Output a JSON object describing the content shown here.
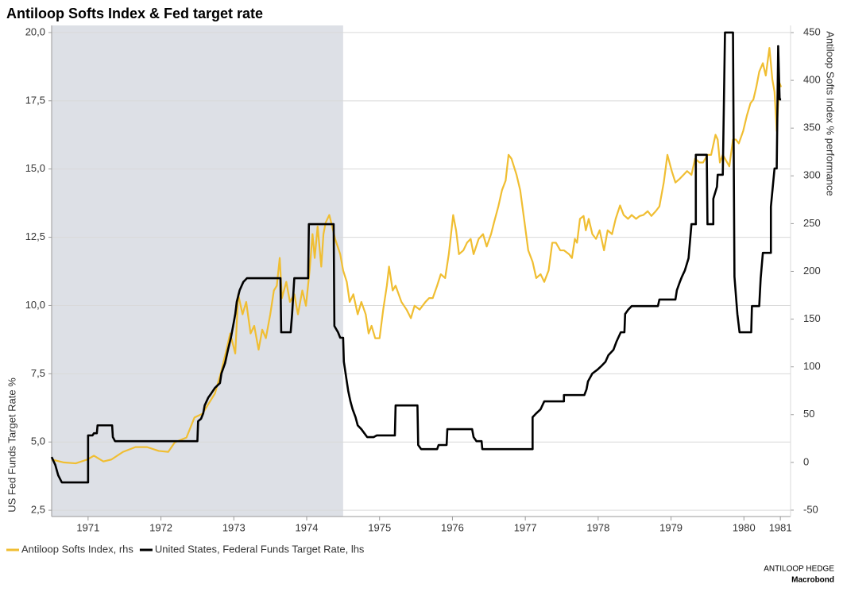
{
  "chart_data": {
    "type": "line",
    "title": "Antiloop Softs Index & Fed target rate",
    "y_label": "US Fed Funds Target Rate %",
    "y2_label": "Antiloop Softs Index % performance",
    "source": "ANTILOOP HEDGE",
    "credit": "Macrobond",
    "xlim": [
      1971,
      1981.14
    ],
    "xticks": [
      {
        "value": 1971.5,
        "label": "1971"
      },
      {
        "value": 1972.5,
        "label": "1972"
      },
      {
        "value": 1973.5,
        "label": "1973"
      },
      {
        "value": 1974.5,
        "label": "1974"
      },
      {
        "value": 1975.5,
        "label": "1975"
      },
      {
        "value": 1976.5,
        "label": "1976"
      },
      {
        "value": 1977.5,
        "label": "1977"
      },
      {
        "value": 1978.5,
        "label": "1978"
      },
      {
        "value": 1979.5,
        "label": "1979"
      },
      {
        "value": 1980.5,
        "label": "1980"
      },
      1981
    ],
    "ylim": [
      2.27,
      20.26
    ],
    "yticks": [
      {
        "value": 2.5,
        "label": "2,5"
      },
      {
        "value": 5,
        "label": "5,0"
      },
      {
        "value": 7.5,
        "label": "7,5"
      },
      {
        "value": 10,
        "label": "10,0"
      },
      {
        "value": 12.5,
        "label": "12,5"
      },
      {
        "value": 15,
        "label": "15,0"
      },
      {
        "value": 17.5,
        "label": "17,5"
      },
      {
        "value": 20,
        "label": "20,0"
      }
    ],
    "y2lim": [
      -56.7,
      457.5
    ],
    "y2ticks": [
      -50,
      0,
      50,
      100,
      150,
      200,
      250,
      300,
      350,
      400,
      450
    ],
    "grid": true,
    "shaded_x": [
      1971,
      1975
    ],
    "shade_color": "#dde0e6",
    "series": [
      {
        "name": "Antiloop Softs Index, rhs",
        "color": "#f0be32",
        "axis": "y2",
        "x": [
          1971.0,
          1971.16,
          1971.33,
          1971.49,
          1971.58,
          1971.71,
          1971.82,
          1971.98,
          1972.15,
          1972.31,
          1972.47,
          1972.6,
          1972.69,
          1972.85,
          1972.96,
          1973.07,
          1973.15,
          1973.24,
          1973.32,
          1973.4,
          1973.45,
          1973.52,
          1973.56,
          1973.62,
          1973.67,
          1973.73,
          1973.78,
          1973.84,
          1973.89,
          1973.94,
          1974.0,
          1974.05,
          1974.09,
          1974.13,
          1974.16,
          1974.22,
          1974.27,
          1974.33,
          1974.38,
          1974.44,
          1974.49,
          1974.54,
          1974.58,
          1974.61,
          1974.65,
          1974.7,
          1974.73,
          1974.76,
          1974.81,
          1974.85,
          1974.89,
          1974.96,
          1975.0,
          1975.05,
          1975.09,
          1975.14,
          1975.2,
          1975.25,
          1975.31,
          1975.35,
          1975.39,
          1975.44,
          1975.5,
          1975.55,
          1975.6,
          1975.63,
          1975.68,
          1975.72,
          1975.8,
          1975.87,
          1975.93,
          1975.98,
          1976.05,
          1976.13,
          1976.18,
          1976.23,
          1976.29,
          1976.34,
          1976.4,
          1976.45,
          1976.51,
          1976.55,
          1976.59,
          1976.65,
          1976.7,
          1976.75,
          1976.79,
          1976.86,
          1976.92,
          1976.97,
          1977.03,
          1977.07,
          1977.13,
          1977.18,
          1977.23,
          1977.27,
          1977.31,
          1977.38,
          1977.43,
          1977.49,
          1977.54,
          1977.6,
          1977.65,
          1977.71,
          1977.76,
          1977.82,
          1977.87,
          1977.92,
          1977.98,
          1978.03,
          1978.1,
          1978.14,
          1978.18,
          1978.21,
          1978.25,
          1978.3,
          1978.33,
          1978.37,
          1978.42,
          1978.47,
          1978.52,
          1978.58,
          1978.63,
          1978.69,
          1978.74,
          1978.8,
          1978.85,
          1978.91,
          1978.96,
          1979.02,
          1979.07,
          1979.12,
          1979.18,
          1979.23,
          1979.29,
          1979.34,
          1979.4,
          1979.45,
          1979.51,
          1979.56,
          1979.62,
          1979.67,
          1979.72,
          1979.78,
          1979.83,
          1979.89,
          1979.94,
          1980.0,
          1980.05,
          1980.11,
          1980.14,
          1980.17,
          1980.21,
          1980.27,
          1980.3,
          1980.35,
          1980.39,
          1980.43,
          1980.49,
          1980.54,
          1980.59,
          1980.63,
          1980.67,
          1980.71,
          1980.76,
          1980.8,
          1980.85,
          1980.89,
          1980.92,
          1980.95,
          1980.97,
          1980.99,
          1981.01
        ],
        "values": [
          3,
          0,
          -1,
          3,
          7,
          1,
          3,
          11,
          16,
          16,
          12,
          11,
          21,
          26,
          47,
          51,
          61,
          72,
          93,
          118,
          135,
          114,
          176,
          155,
          168,
          135,
          143,
          118,
          139,
          130,
          155,
          180,
          185,
          214,
          172,
          189,
          168,
          176,
          155,
          180,
          164,
          201,
          239,
          214,
          247,
          205,
          239,
          251,
          259,
          247,
          234,
          218,
          201,
          189,
          168,
          176,
          155,
          168,
          155,
          135,
          143,
          130,
          130,
          160,
          185,
          205,
          180,
          185,
          168,
          160,
          151,
          164,
          160,
          168,
          172,
          172,
          185,
          197,
          193,
          218,
          259,
          243,
          218,
          222,
          230,
          234,
          218,
          234,
          239,
          226,
          239,
          251,
          268,
          285,
          295,
          322,
          318,
          301,
          285,
          251,
          222,
          210,
          193,
          197,
          189,
          201,
          230,
          230,
          222,
          222,
          218,
          214,
          234,
          230,
          255,
          258,
          243,
          255,
          239,
          234,
          243,
          222,
          243,
          239,
          255,
          269,
          259,
          255,
          259,
          255,
          258,
          259,
          263,
          258,
          263,
          268,
          293,
          322,
          305,
          293,
          297,
          301,
          305,
          301,
          318,
          314,
          314,
          322,
          322,
          343,
          338,
          314,
          322,
          314,
          310,
          338,
          338,
          334,
          347,
          363,
          376,
          380,
          393,
          409,
          418,
          405,
          434,
          401,
          388,
          347,
          376,
          397,
          393
        ]
      },
      {
        "name": "United States, Federal Funds Target Rate, lhs",
        "color": "#000000",
        "axis": "y",
        "x": [
          1971.0,
          1971.05,
          1971.09,
          1971.14,
          1971.5,
          1971.5,
          1971.56,
          1971.58,
          1971.62,
          1971.63,
          1971.83,
          1971.84,
          1971.87,
          1973.0,
          1973.01,
          1973.05,
          1973.08,
          1973.1,
          1973.15,
          1973.19,
          1973.24,
          1973.31,
          1973.33,
          1973.38,
          1973.42,
          1973.46,
          1973.49,
          1973.52,
          1973.54,
          1973.58,
          1973.63,
          1973.68,
          1974.14,
          1974.15,
          1974.28,
          1974.3,
          1974.33,
          1974.52,
          1974.53,
          1974.87,
          1974.88,
          1974.93,
          1974.96,
          1975.0,
          1975.01,
          1975.05,
          1975.07,
          1975.1,
          1975.13,
          1975.17,
          1975.2,
          1975.25,
          1975.33,
          1975.42,
          1975.46,
          1975.71,
          1975.72,
          1976.02,
          1976.03,
          1976.07,
          1976.29,
          1976.31,
          1976.42,
          1976.43,
          1976.77,
          1976.79,
          1976.83,
          1976.9,
          1976.91,
          1977.6,
          1977.6,
          1977.65,
          1977.71,
          1977.76,
          1978.03,
          1978.03,
          1978.31,
          1978.34,
          1978.36,
          1978.42,
          1978.49,
          1978.55,
          1978.6,
          1978.64,
          1978.71,
          1978.75,
          1978.81,
          1978.86,
          1978.87,
          1978.91,
          1978.96,
          1979.32,
          1979.34,
          1979.56,
          1979.58,
          1979.62,
          1979.65,
          1979.69,
          1979.74,
          1979.78,
          1979.84,
          1979.84,
          1979.99,
          1980.0,
          1980.08,
          1980.08,
          1980.13,
          1980.14,
          1980.21,
          1980.24,
          1980.35,
          1980.37,
          1980.41,
          1980.44,
          1980.6,
          1980.61,
          1980.71,
          1980.73,
          1980.76,
          1980.87,
          1980.87,
          1980.92,
          1980.95,
          1980.97,
          1980.99,
          1981.01
        ],
        "values": [
          4.45,
          4.16,
          3.78,
          3.52,
          3.52,
          5.24,
          5.24,
          5.32,
          5.32,
          5.61,
          5.61,
          5.18,
          5.03,
          5.03,
          5.76,
          5.85,
          6.05,
          6.34,
          6.63,
          6.78,
          6.98,
          7.16,
          7.51,
          7.89,
          8.38,
          8.82,
          9.25,
          9.69,
          10.13,
          10.56,
          10.86,
          11.0,
          11.0,
          9.02,
          9.02,
          9.69,
          11.0,
          11.0,
          12.98,
          12.98,
          9.25,
          9.02,
          8.82,
          8.82,
          7.94,
          7.22,
          6.87,
          6.49,
          6.2,
          5.91,
          5.61,
          5.47,
          5.18,
          5.18,
          5.24,
          5.24,
          6.34,
          6.34,
          4.89,
          4.74,
          4.74,
          4.89,
          4.89,
          5.47,
          5.47,
          5.18,
          5.03,
          5.03,
          4.74,
          4.74,
          5.91,
          6.05,
          6.2,
          6.49,
          6.49,
          6.72,
          6.72,
          6.93,
          7.22,
          7.51,
          7.65,
          7.8,
          7.94,
          8.18,
          8.38,
          8.67,
          9.02,
          9.02,
          9.69,
          9.84,
          9.98,
          9.98,
          10.22,
          10.22,
          10.56,
          10.86,
          11.06,
          11.29,
          11.73,
          12.98,
          12.98,
          15.52,
          15.52,
          12.98,
          12.98,
          13.91,
          14.35,
          14.79,
          14.79,
          20.0,
          20.0,
          11.06,
          9.69,
          9.02,
          9.02,
          9.98,
          9.98,
          11.0,
          11.93,
          11.93,
          13.62,
          15.02,
          15.02,
          19.5,
          17.55,
          17.55
        ]
      }
    ]
  }
}
